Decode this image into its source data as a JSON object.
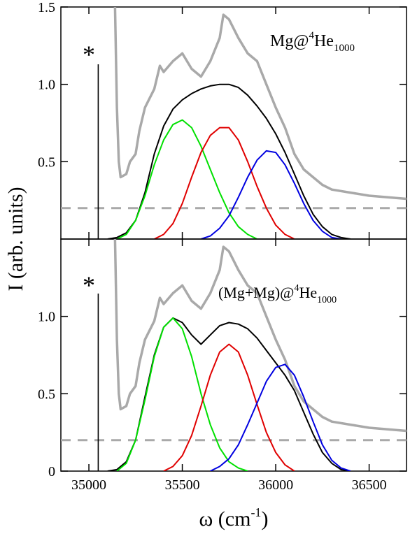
{
  "chart_data": {
    "type": "line",
    "xlabel": "ω (cm",
    "xlabel_sup": "-1",
    "xlabel_tail": ")",
    "ylabel": "I (arb. units)",
    "xlim": [
      34850,
      36700
    ],
    "x_ticks": [
      "35000",
      "35500",
      "36000",
      "36500"
    ],
    "x_tick_values": [
      35000,
      35500,
      36000,
      36500
    ],
    "reference_line": {
      "x": 35050,
      "marker": "*"
    },
    "panels": [
      {
        "id": "top",
        "label_main": "Mg@",
        "label_sup": "4",
        "label_elem": "He",
        "label_sub": "1000",
        "ylim": [
          0,
          1.5
        ],
        "y_ticks": [
          "1.5",
          "1.0",
          "0.5"
        ],
        "y_tick_values": [
          1.5,
          1.0,
          0.5
        ],
        "dashed_level": 0.2,
        "series": [
          {
            "color": "#a9a9a9",
            "points": [
              [
                35140,
                1.5
              ],
              [
                35150,
                0.85
              ],
              [
                35160,
                0.5
              ],
              [
                35170,
                0.4
              ],
              [
                35200,
                0.42
              ],
              [
                35220,
                0.5
              ],
              [
                35250,
                0.55
              ],
              [
                35270,
                0.7
              ],
              [
                35300,
                0.85
              ],
              [
                35350,
                0.97
              ],
              [
                35380,
                1.12
              ],
              [
                35400,
                1.08
              ],
              [
                35450,
                1.15
              ],
              [
                35500,
                1.2
              ],
              [
                35550,
                1.1
              ],
              [
                35600,
                1.05
              ],
              [
                35650,
                1.15
              ],
              [
                35700,
                1.3
              ],
              [
                35720,
                1.45
              ],
              [
                35750,
                1.42
              ],
              [
                35800,
                1.3
              ],
              [
                35850,
                1.2
              ],
              [
                35900,
                1.15
              ],
              [
                35950,
                1.0
              ],
              [
                36000,
                0.85
              ],
              [
                36050,
                0.72
              ],
              [
                36100,
                0.55
              ],
              [
                36150,
                0.45
              ],
              [
                36200,
                0.4
              ],
              [
                36250,
                0.35
              ],
              [
                36300,
                0.32
              ],
              [
                36400,
                0.3
              ],
              [
                36500,
                0.28
              ],
              [
                36600,
                0.27
              ],
              [
                36700,
                0.26
              ]
            ]
          },
          {
            "color": "#000000",
            "points": [
              [
                35100,
                0.0
              ],
              [
                35150,
                0.01
              ],
              [
                35200,
                0.04
              ],
              [
                35250,
                0.12
              ],
              [
                35300,
                0.3
              ],
              [
                35350,
                0.55
              ],
              [
                35400,
                0.73
              ],
              [
                35450,
                0.84
              ],
              [
                35500,
                0.9
              ],
              [
                35550,
                0.94
              ],
              [
                35600,
                0.97
              ],
              [
                35650,
                0.99
              ],
              [
                35700,
                1.0
              ],
              [
                35750,
                1.0
              ],
              [
                35800,
                0.98
              ],
              [
                35850,
                0.93
              ],
              [
                35900,
                0.86
              ],
              [
                35950,
                0.78
              ],
              [
                36000,
                0.68
              ],
              [
                36050,
                0.56
              ],
              [
                36100,
                0.42
              ],
              [
                36150,
                0.28
              ],
              [
                36200,
                0.16
              ],
              [
                36250,
                0.08
              ],
              [
                36300,
                0.03
              ],
              [
                36350,
                0.01
              ],
              [
                36400,
                0.0
              ]
            ]
          },
          {
            "color": "#00e000",
            "points": [
              [
                35150,
                0.0
              ],
              [
                35200,
                0.03
              ],
              [
                35250,
                0.12
              ],
              [
                35300,
                0.28
              ],
              [
                35350,
                0.48
              ],
              [
                35400,
                0.64
              ],
              [
                35450,
                0.74
              ],
              [
                35500,
                0.77
              ],
              [
                35550,
                0.72
              ],
              [
                35600,
                0.6
              ],
              [
                35650,
                0.45
              ],
              [
                35700,
                0.3
              ],
              [
                35750,
                0.17
              ],
              [
                35800,
                0.08
              ],
              [
                35850,
                0.03
              ],
              [
                35900,
                0.0
              ]
            ]
          },
          {
            "color": "#e00000",
            "points": [
              [
                35350,
                0.0
              ],
              [
                35400,
                0.03
              ],
              [
                35450,
                0.1
              ],
              [
                35500,
                0.23
              ],
              [
                35550,
                0.4
              ],
              [
                35600,
                0.56
              ],
              [
                35650,
                0.67
              ],
              [
                35700,
                0.72
              ],
              [
                35750,
                0.72
              ],
              [
                35800,
                0.64
              ],
              [
                35850,
                0.5
              ],
              [
                35900,
                0.34
              ],
              [
                35950,
                0.2
              ],
              [
                36000,
                0.09
              ],
              [
                36050,
                0.03
              ],
              [
                36100,
                0.0
              ]
            ]
          },
          {
            "color": "#0000e0",
            "points": [
              [
                35600,
                0.0
              ],
              [
                35650,
                0.02
              ],
              [
                35700,
                0.07
              ],
              [
                35750,
                0.15
              ],
              [
                35800,
                0.27
              ],
              [
                35850,
                0.4
              ],
              [
                35900,
                0.51
              ],
              [
                35950,
                0.57
              ],
              [
                36000,
                0.56
              ],
              [
                36050,
                0.48
              ],
              [
                36100,
                0.36
              ],
              [
                36150,
                0.23
              ],
              [
                36200,
                0.12
              ],
              [
                36250,
                0.05
              ],
              [
                36300,
                0.01
              ],
              [
                36350,
                0.0
              ]
            ]
          }
        ]
      },
      {
        "id": "bottom",
        "label_main": "(Mg+Mg)@",
        "label_sup": "4",
        "label_elem": "He",
        "label_sub": "1000",
        "ylim": [
          0,
          1.5
        ],
        "y_ticks": [
          "1.0",
          "0.5",
          "0"
        ],
        "y_tick_values": [
          1.0,
          0.5,
          0.0
        ],
        "dashed_level": 0.2,
        "series": [
          {
            "color": "#a9a9a9",
            "points": [
              [
                35140,
                1.5
              ],
              [
                35150,
                0.85
              ],
              [
                35160,
                0.5
              ],
              [
                35170,
                0.4
              ],
              [
                35200,
                0.42
              ],
              [
                35220,
                0.5
              ],
              [
                35250,
                0.55
              ],
              [
                35270,
                0.7
              ],
              [
                35300,
                0.85
              ],
              [
                35350,
                0.97
              ],
              [
                35380,
                1.12
              ],
              [
                35400,
                1.08
              ],
              [
                35450,
                1.15
              ],
              [
                35500,
                1.2
              ],
              [
                35550,
                1.1
              ],
              [
                35600,
                1.05
              ],
              [
                35650,
                1.15
              ],
              [
                35700,
                1.3
              ],
              [
                35720,
                1.45
              ],
              [
                35750,
                1.42
              ],
              [
                35800,
                1.3
              ],
              [
                35850,
                1.2
              ],
              [
                35900,
                1.15
              ],
              [
                35950,
                1.0
              ],
              [
                36000,
                0.85
              ],
              [
                36050,
                0.72
              ],
              [
                36100,
                0.55
              ],
              [
                36150,
                0.45
              ],
              [
                36200,
                0.4
              ],
              [
                36250,
                0.35
              ],
              [
                36300,
                0.32
              ],
              [
                36400,
                0.3
              ],
              [
                36500,
                0.28
              ],
              [
                36600,
                0.27
              ],
              [
                36700,
                0.26
              ]
            ]
          },
          {
            "color": "#000000",
            "points": [
              [
                35100,
                0.0
              ],
              [
                35150,
                0.01
              ],
              [
                35200,
                0.06
              ],
              [
                35250,
                0.2
              ],
              [
                35300,
                0.48
              ],
              [
                35350,
                0.75
              ],
              [
                35400,
                0.93
              ],
              [
                35450,
                0.99
              ],
              [
                35500,
                0.96
              ],
              [
                35550,
                0.88
              ],
              [
                35600,
                0.82
              ],
              [
                35650,
                0.88
              ],
              [
                35700,
                0.94
              ],
              [
                35750,
                0.96
              ],
              [
                35800,
                0.95
              ],
              [
                35850,
                0.92
              ],
              [
                35900,
                0.86
              ],
              [
                35950,
                0.78
              ],
              [
                36000,
                0.7
              ],
              [
                36050,
                0.62
              ],
              [
                36100,
                0.52
              ],
              [
                36150,
                0.38
              ],
              [
                36200,
                0.24
              ],
              [
                36250,
                0.12
              ],
              [
                36300,
                0.05
              ],
              [
                36350,
                0.01
              ],
              [
                36400,
                0.0
              ]
            ]
          },
          {
            "color": "#00e000",
            "points": [
              [
                35150,
                0.0
              ],
              [
                35200,
                0.05
              ],
              [
                35250,
                0.2
              ],
              [
                35300,
                0.46
              ],
              [
                35350,
                0.74
              ],
              [
                35400,
                0.93
              ],
              [
                35450,
                0.99
              ],
              [
                35500,
                0.92
              ],
              [
                35550,
                0.74
              ],
              [
                35600,
                0.5
              ],
              [
                35650,
                0.3
              ],
              [
                35700,
                0.15
              ],
              [
                35750,
                0.06
              ],
              [
                35800,
                0.02
              ],
              [
                35850,
                0.0
              ]
            ]
          },
          {
            "color": "#e00000",
            "points": [
              [
                35400,
                0.0
              ],
              [
                35450,
                0.03
              ],
              [
                35500,
                0.1
              ],
              [
                35550,
                0.23
              ],
              [
                35600,
                0.42
              ],
              [
                35650,
                0.62
              ],
              [
                35700,
                0.77
              ],
              [
                35750,
                0.82
              ],
              [
                35800,
                0.77
              ],
              [
                35850,
                0.62
              ],
              [
                35900,
                0.43
              ],
              [
                35950,
                0.25
              ],
              [
                36000,
                0.12
              ],
              [
                36050,
                0.04
              ],
              [
                36100,
                0.0
              ]
            ]
          },
          {
            "color": "#0000e0",
            "points": [
              [
                35650,
                0.0
              ],
              [
                35700,
                0.03
              ],
              [
                35750,
                0.08
              ],
              [
                35800,
                0.17
              ],
              [
                35850,
                0.3
              ],
              [
                35900,
                0.44
              ],
              [
                35950,
                0.58
              ],
              [
                36000,
                0.67
              ],
              [
                36050,
                0.69
              ],
              [
                36100,
                0.62
              ],
              [
                36150,
                0.48
              ],
              [
                36200,
                0.32
              ],
              [
                36250,
                0.17
              ],
              [
                36300,
                0.07
              ],
              [
                36350,
                0.02
              ],
              [
                36400,
                0.0
              ]
            ]
          }
        ]
      }
    ]
  }
}
